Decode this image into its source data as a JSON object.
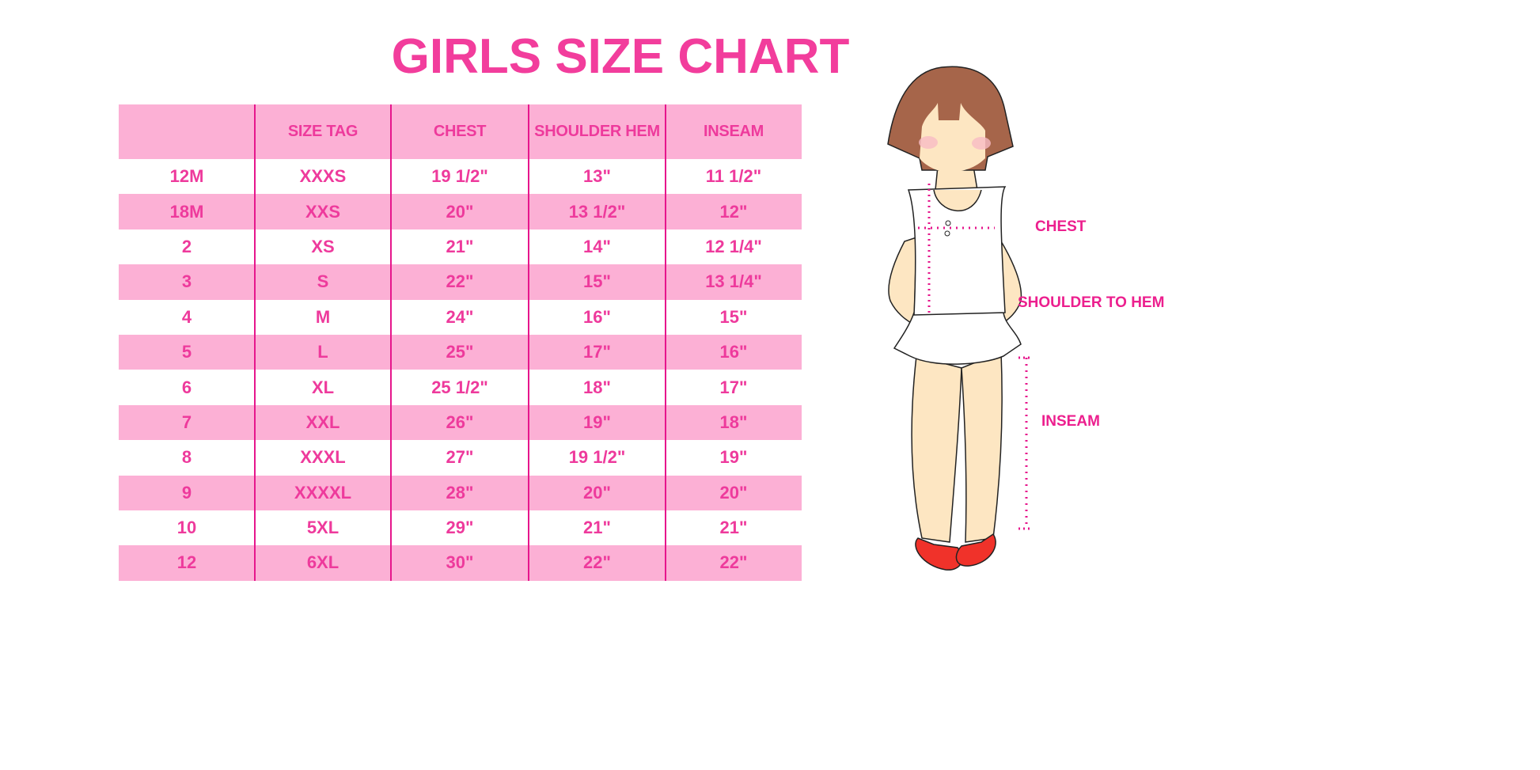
{
  "title": "GIRLS SIZE CHART",
  "table": {
    "headers": [
      "",
      "SIZE TAG",
      "CHEST",
      "SHOULDER HEM",
      "INSEAM"
    ],
    "rows": [
      [
        "12M",
        "XXXS",
        "19 1/2\"",
        "13\"",
        "11 1/2\""
      ],
      [
        "18M",
        "XXS",
        "20\"",
        "13 1/2\"",
        "12\""
      ],
      [
        "2",
        "XS",
        "21\"",
        "14\"",
        "12 1/4\""
      ],
      [
        "3",
        "S",
        "22\"",
        "15\"",
        "13 1/4\""
      ],
      [
        "4",
        "M",
        "24\"",
        "16\"",
        "15\""
      ],
      [
        "5",
        "L",
        "25\"",
        "17\"",
        "16\""
      ],
      [
        "6",
        "XL",
        "25 1/2\"",
        "18\"",
        "17\""
      ],
      [
        "7",
        "XXL",
        "26\"",
        "19\"",
        "18\""
      ],
      [
        "8",
        "XXXL",
        "27\"",
        "19 1/2\"",
        "19\""
      ],
      [
        "9",
        "XXXXL",
        "28\"",
        "20\"",
        "20\""
      ],
      [
        "10",
        "5XL",
        "29\"",
        "21\"",
        "21\""
      ],
      [
        "12",
        "6XL",
        "30\"",
        "22\"",
        "22\""
      ]
    ]
  },
  "illustration": {
    "labels": {
      "chest": "CHEST",
      "shoulder_to_hem": "SHOULDER TO HEM",
      "inseam": "INSEAM"
    }
  },
  "colors": {
    "accent": "#f23d9c",
    "row_pink": "#fcb0d5",
    "divider": "#e6168c"
  }
}
